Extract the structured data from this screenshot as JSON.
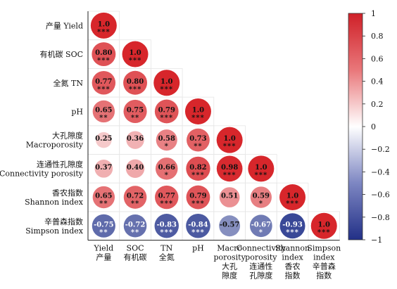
{
  "chart_data": {
    "type": "heatmap",
    "shape": "lower-triangle-circles",
    "row_labels": [
      [
        "产量 Yield"
      ],
      [
        "有机碳 SOC"
      ],
      [
        "全氮 TN"
      ],
      [
        "pH"
      ],
      [
        "大孔隙度",
        "Macroporosity"
      ],
      [
        "连通性孔隙度",
        "Connectivity porosity"
      ],
      [
        "香农指数",
        "Shannon index"
      ],
      [
        "辛普森指数",
        "Simpson index"
      ]
    ],
    "col_labels": [
      [
        "Yield",
        "产量"
      ],
      [
        "SOC",
        "有机碳"
      ],
      [
        "TN",
        "全氮"
      ],
      [
        "pH"
      ],
      [
        "Macro",
        "porosity",
        "大孔",
        "隙度"
      ],
      [
        "Connectivity",
        "porosity",
        "连通性",
        "孔隙度"
      ],
      [
        "Shannon",
        "index",
        "香农",
        "指数"
      ],
      [
        "Simpson",
        "index",
        "辛普森",
        "指数"
      ]
    ],
    "values": [
      [
        "1.0"
      ],
      [
        "0.80",
        "1.0"
      ],
      [
        "0.77",
        "0.80",
        "1.0"
      ],
      [
        "0.65",
        "0.75",
        "0.79",
        "1.0"
      ],
      [
        "0.25",
        "0.36",
        "0.58",
        "0.73",
        "1.0"
      ],
      [
        "0.37",
        "0.40",
        "0.66",
        "0.82",
        "0.98",
        "1.0"
      ],
      [
        "0.65",
        "0.72",
        "0.77",
        "0.79",
        "0.51",
        "0.59",
        "1.0"
      ],
      [
        "-0.75",
        "-0.72",
        "-0.83",
        "-0.84",
        "-0.57",
        "-0.67",
        "-0.93",
        "1.0"
      ]
    ],
    "significance": [
      [
        "***"
      ],
      [
        "***",
        "***"
      ],
      [
        "***",
        "***",
        "***"
      ],
      [
        "**",
        "**",
        "***",
        "***"
      ],
      [
        "",
        "",
        "*",
        "**",
        "***"
      ],
      [
        "",
        "",
        "*",
        "***",
        "***",
        "***"
      ],
      [
        "**",
        "**",
        "***",
        "***",
        "",
        "*",
        "***"
      ],
      [
        "**",
        "**",
        "***",
        "***",
        "",
        "*",
        "***",
        "***"
      ]
    ],
    "colorbar": {
      "min": -1,
      "max": 1,
      "ticks": [
        "1",
        "0.8",
        "0.6",
        "0.4",
        "0.2",
        "0",
        "−0.2",
        "−0.4",
        "−0.6",
        "−0.8",
        "−1"
      ],
      "colors": [
        "#2a3a8f",
        "#ffffff",
        "#d7262b"
      ]
    }
  }
}
